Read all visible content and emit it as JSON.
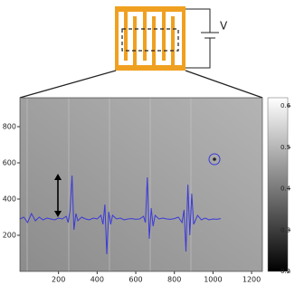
{
  "chart_data": {
    "type": "image-trace",
    "annotation": "V",
    "x": [
      0,
      20,
      40,
      60,
      80,
      100,
      120,
      140,
      160,
      180,
      200,
      220,
      240,
      250,
      260,
      270,
      280,
      290,
      300,
      320,
      340,
      360,
      380,
      400,
      420,
      430,
      440,
      450,
      460,
      470,
      480,
      500,
      520,
      540,
      560,
      580,
      600,
      620,
      640,
      650,
      660,
      670,
      680,
      690,
      700,
      720,
      740,
      760,
      780,
      800,
      820,
      840,
      850,
      860,
      870,
      880,
      890,
      900,
      920,
      940,
      960,
      980,
      1000,
      1020,
      1040
    ],
    "values": [
      290,
      300,
      270,
      320,
      280,
      300,
      285,
      295,
      290,
      285,
      295,
      290,
      305,
      270,
      340,
      530,
      230,
      320,
      280,
      300,
      290,
      285,
      295,
      290,
      310,
      260,
      370,
      95,
      330,
      260,
      310,
      290,
      295,
      285,
      290,
      292,
      288,
      290,
      305,
      270,
      520,
      180,
      350,
      250,
      310,
      290,
      295,
      290,
      288,
      292,
      300,
      270,
      340,
      110,
      480,
      200,
      430,
      260,
      310,
      285,
      295,
      285,
      290,
      288,
      292
    ],
    "color": "#3a3ad8",
    "xlim": [
      0,
      1256
    ],
    "ylim": [
      0,
      960
    ],
    "xticks": [
      200,
      400,
      600,
      800,
      1000,
      1200
    ],
    "yticks": [
      200,
      400,
      600,
      800
    ],
    "colorbar": {
      "lim": [
        0.2,
        0.62
      ],
      "ticks": [
        0.2,
        0.3,
        0.4,
        0.5,
        0.6
      ]
    }
  }
}
